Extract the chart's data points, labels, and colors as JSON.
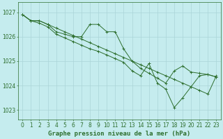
{
  "background_color": "#c5ecee",
  "grid_color": "#aad4d8",
  "line_color": "#2d6e2d",
  "marker_color": "#2d6e2d",
  "xlabel": "Graphe pression niveau de la mer (hPa)",
  "xlim": [
    -0.5,
    23.5
  ],
  "ylim": [
    1022.6,
    1027.4
  ],
  "yticks": [
    1023,
    1024,
    1025,
    1026,
    1027
  ],
  "xticks": [
    0,
    1,
    2,
    3,
    4,
    5,
    6,
    7,
    8,
    9,
    10,
    11,
    12,
    13,
    14,
    15,
    16,
    17,
    18,
    19,
    20,
    21,
    22,
    23
  ],
  "series": [
    {
      "x": [
        0,
        1,
        2,
        3,
        4,
        5,
        6,
        7,
        8,
        9,
        10,
        11,
        12,
        13,
        14,
        15,
        16,
        17,
        18,
        19,
        20,
        21,
        22,
        23
      ],
      "y": [
        1026.9,
        1026.65,
        1026.65,
        1026.5,
        1026.35,
        1026.2,
        1026.05,
        1025.9,
        1025.75,
        1025.6,
        1025.45,
        1025.3,
        1025.15,
        1025.0,
        1024.85,
        1024.7,
        1024.55,
        1024.4,
        1024.25,
        1024.1,
        1023.95,
        1023.8,
        1023.65,
        1024.4
      ]
    },
    {
      "x": [
        0,
        1,
        2,
        3,
        4,
        5,
        6,
        7,
        8,
        9,
        10,
        11,
        12,
        13,
        14,
        15,
        16,
        17,
        18,
        19,
        20,
        21,
        22,
        23
      ],
      "y": [
        1026.9,
        1026.65,
        1026.65,
        1026.5,
        1026.2,
        1026.1,
        1026.0,
        1026.0,
        1026.5,
        1026.5,
        1026.2,
        1026.2,
        1025.5,
        1025.0,
        1024.7,
        1024.5,
        1024.3,
        1024.1,
        1024.6,
        1024.8,
        1024.55,
        1024.5,
        1024.45,
        1024.35
      ]
    },
    {
      "x": [
        0,
        1,
        2,
        3,
        4,
        5,
        6,
        7,
        8,
        9,
        10,
        11,
        12,
        13,
        14,
        15,
        16,
        17,
        18,
        19,
        20,
        21,
        22,
        23
      ],
      "y": [
        1026.9,
        1026.65,
        1026.55,
        1026.4,
        1026.1,
        1025.95,
        1025.8,
        1025.65,
        1025.5,
        1025.4,
        1025.25,
        1025.1,
        1024.95,
        1024.6,
        1024.4,
        1024.9,
        1024.1,
        1023.85,
        1023.1,
        1023.5,
        1023.95,
        1024.4,
        1024.45,
        1024.35
      ]
    }
  ],
  "label_fontsize": 6.5,
  "tick_fontsize": 5.5
}
